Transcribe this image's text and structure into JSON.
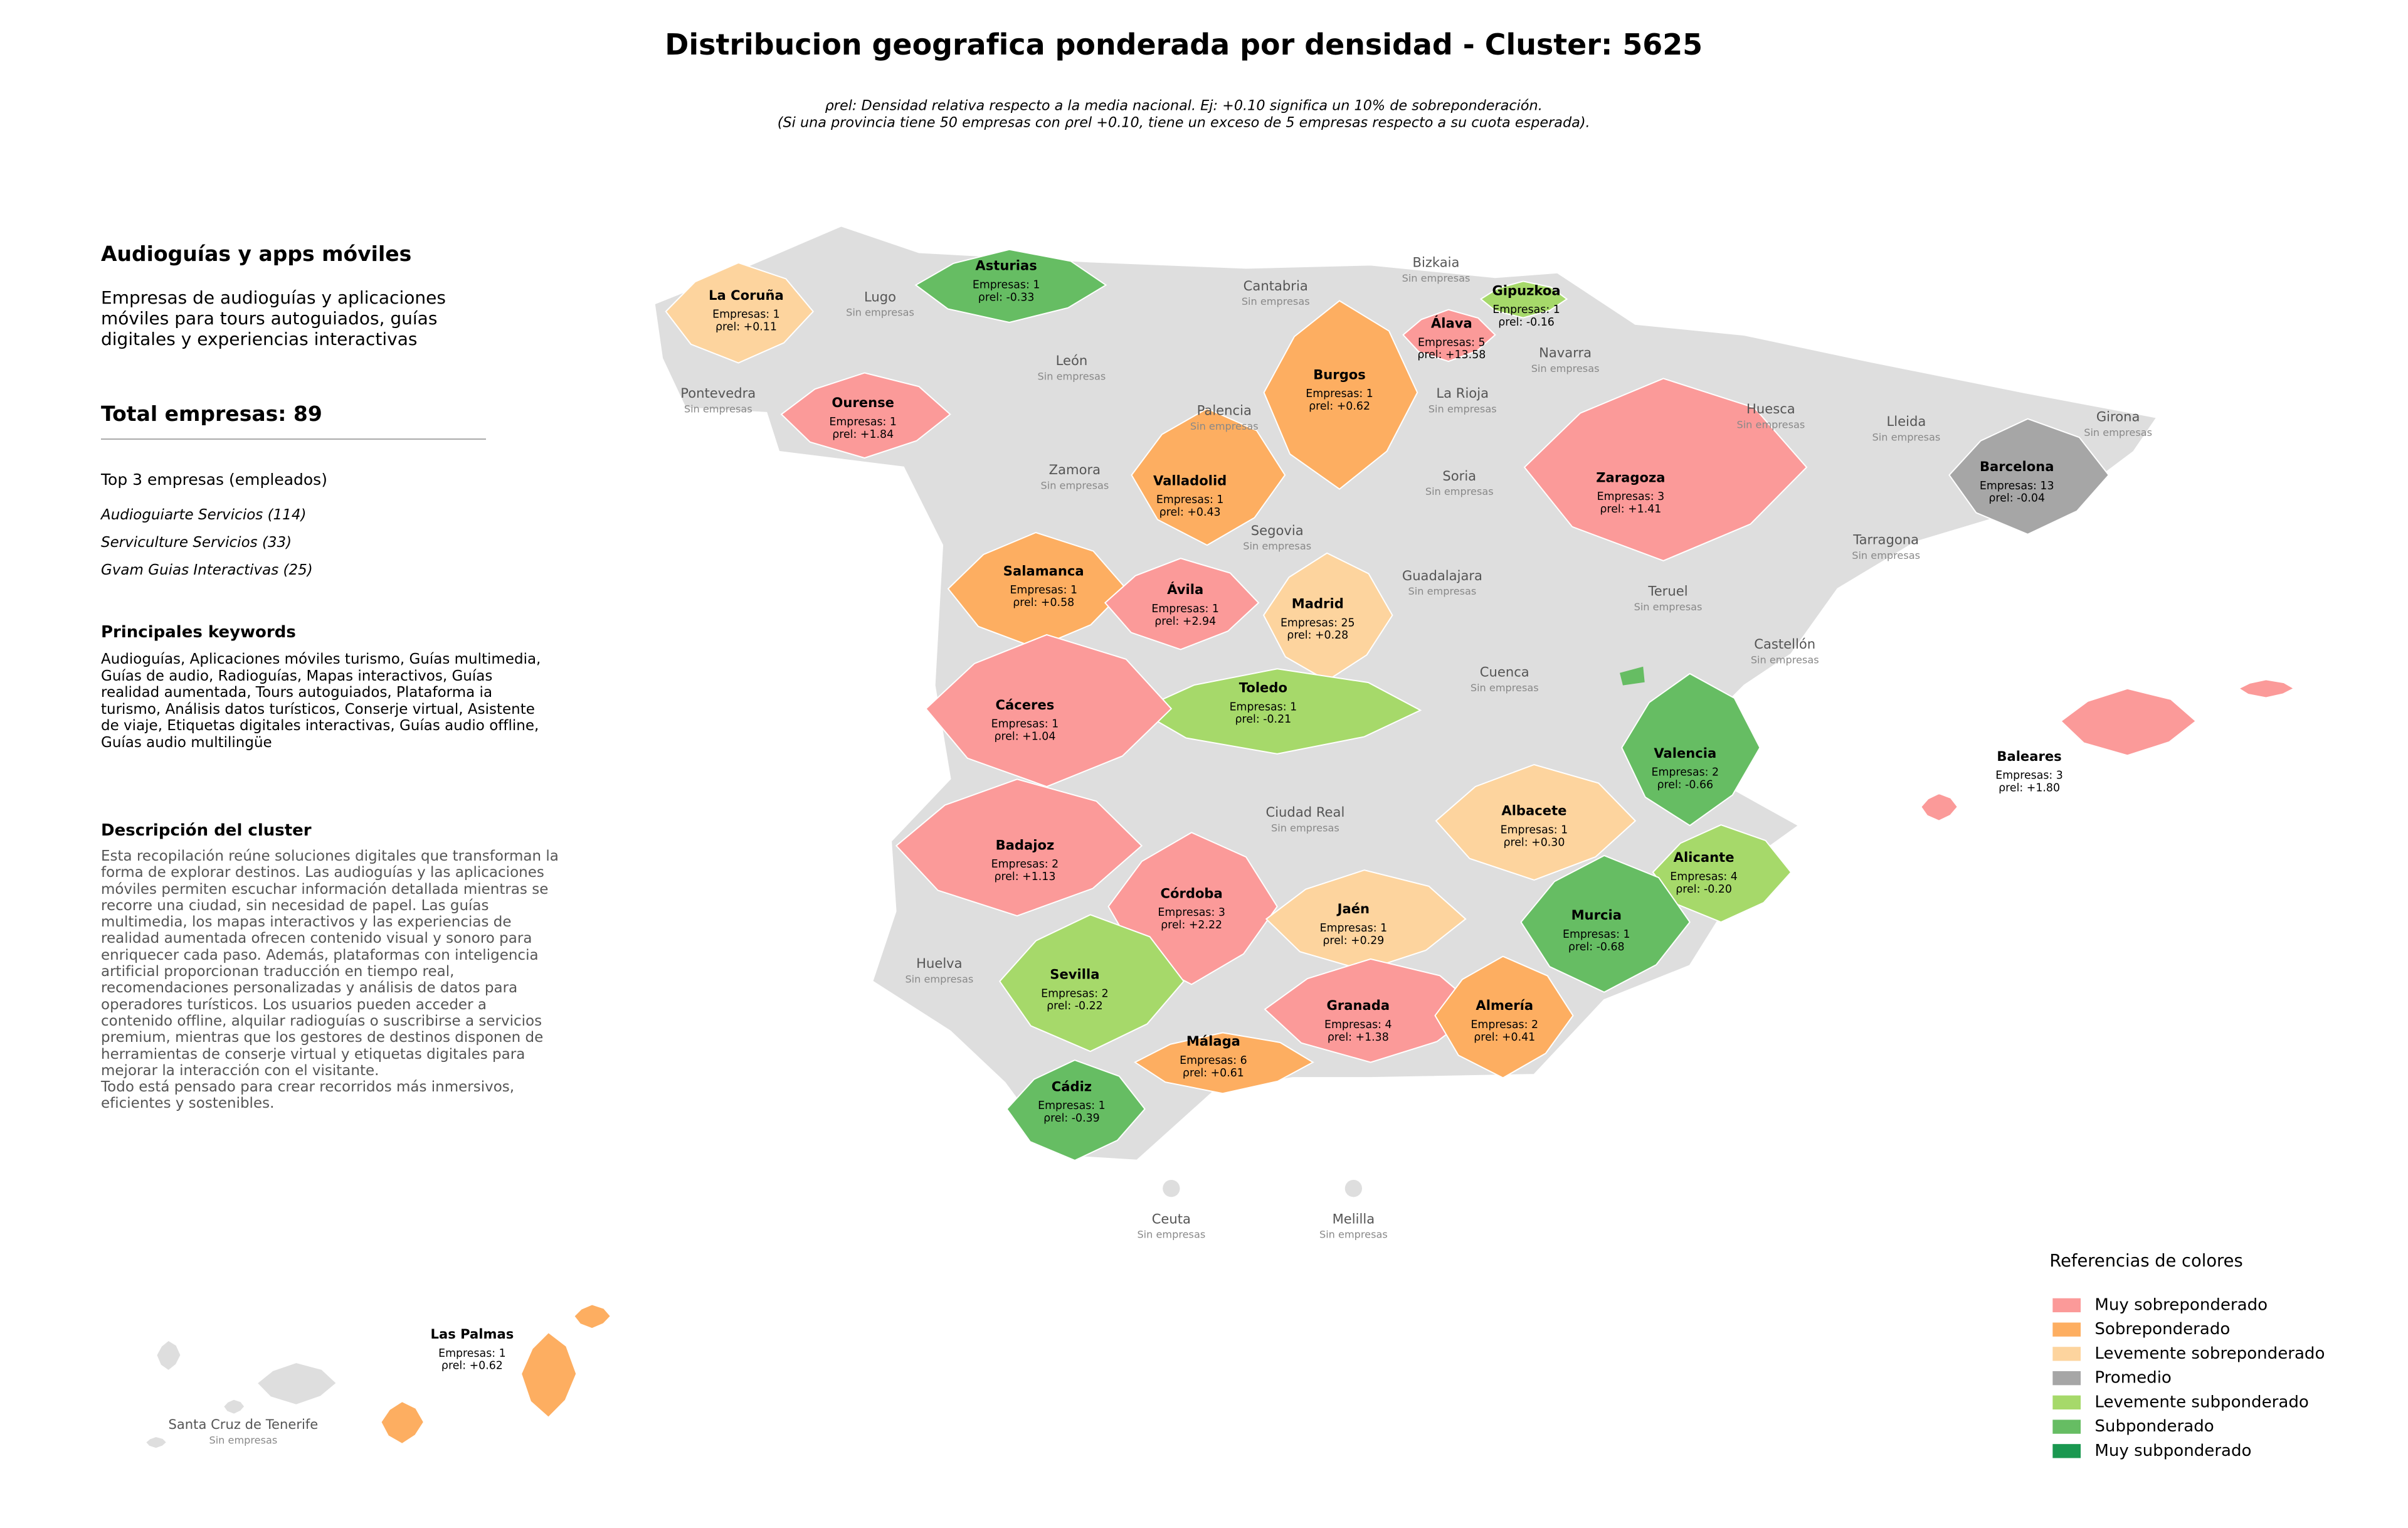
{
  "title": "Distribucion geografica ponderada por densidad - Cluster: 5625",
  "subtitle": [
    "ρrel: Densidad relativa respecto a la media nacional. Ej: +0.10 significa un 10% de sobreponderación.",
    "(Si una provincia tiene 50 empresas con ρrel +0.10, tiene un exceso de 5 empresas respecto a su cuota esperada)."
  ],
  "panel": {
    "heading": "Audioguías y apps móviles",
    "description": "Empresas de audioguías y aplicaciones móviles para tours autoguiados, guías digitales y experiencias interactivas",
    "total": "Total empresas: 89",
    "top_heading": "Top 3 empresas (empleados)",
    "top_companies": [
      "Audioguiarte Servicios (114)",
      "Serviculture Servicios (33)",
      "Gvam Guias Interactivas (25)"
    ],
    "keywords_heading": "Principales keywords",
    "keywords": "Audioguías, Aplicaciones móviles turismo, Guías multimedia, Guías de audio, Radioguías, Mapas interactivos, Guías realidad aumentada, Tours autoguiados, Plataforma ia turismo, Análisis datos turísticos, Conserje virtual, Asistente de viaje, Etiquetas digitales interactivas, Guías audio offline, Guías audio multilingüe",
    "cluster_heading": "Descripción del cluster",
    "cluster_description": "Esta recopilación reúne soluciones digitales que transforman la forma de explorar destinos. Las audioguías y las aplicaciones móviles permiten escuchar información detallada mientras se recorre una ciudad, sin necesidad de papel. Las guías multimedia, los mapas interactivos y las experiencias de realidad aumentada ofrecen contenido visual y sonoro para enriquecer cada paso. Además, plataformas con inteligencia artificial proporcionan traducción en tiempo real, recomendaciones personalizadas y análisis de datos para operadores turísticos. Los usuarios pueden acceder a contenido offline, alquilar radioguías o suscribirse a servicios premium, mientras que los gestores de destinos disponen de herramientas de conserje virtual y etiquetas digitales para mejorar la interacción con el visitante.\nTodo está pensado para crear recorridos más inmersivos, eficientes y sostenibles."
  },
  "provinces": [
    {
      "name": "La Coruña",
      "count": "Empresas: 1",
      "rho": "ρrel: +0.11",
      "color": "#fdd49e"
    },
    {
      "name": "Asturias",
      "count": "Empresas: 1",
      "rho": "ρrel: -0.33",
      "color": "#66bd63"
    },
    {
      "name": "Gipuzkoa",
      "count": "Empresas: 1",
      "rho": "ρrel: -0.16",
      "color": "#a6d96a"
    },
    {
      "name": "Álava",
      "count": "Empresas: 5",
      "rho": "ρrel: +13.58",
      "color": "#fb9a99"
    },
    {
      "name": "Burgos",
      "count": "Empresas: 1",
      "rho": "ρrel: +0.62",
      "color": "#fdae61"
    },
    {
      "name": "Ourense",
      "count": "Empresas: 1",
      "rho": "ρrel: +1.84",
      "color": "#fb9a99"
    },
    {
      "name": "Zaragoza",
      "count": "Empresas: 3",
      "rho": "ρrel: +1.41",
      "color": "#fb9a99"
    },
    {
      "name": "Barcelona",
      "count": "Empresas: 13",
      "rho": "ρrel: -0.04",
      "color": "#a6a6a6"
    },
    {
      "name": "Valladolid",
      "count": "Empresas: 1",
      "rho": "ρrel: +0.43",
      "color": "#fdae61"
    },
    {
      "name": "Salamanca",
      "count": "Empresas: 1",
      "rho": "ρrel: +0.58",
      "color": "#fdae61"
    },
    {
      "name": "Ávila",
      "count": "Empresas: 1",
      "rho": "ρrel: +2.94",
      "color": "#fb9a99"
    },
    {
      "name": "Madrid",
      "count": "Empresas: 25",
      "rho": "ρrel: +0.28",
      "color": "#fdd49e"
    },
    {
      "name": "Toledo",
      "count": "Empresas: 1",
      "rho": "ρrel: -0.21",
      "color": "#a6d96a"
    },
    {
      "name": "Cáceres",
      "count": "Empresas: 1",
      "rho": "ρrel: +1.04",
      "color": "#fb9a99"
    },
    {
      "name": "Valencia",
      "count": "Empresas: 2",
      "rho": "ρrel: -0.66",
      "color": "#66bd63"
    },
    {
      "name": "Baleares",
      "count": "Empresas: 3",
      "rho": "ρrel: +1.80",
      "color": "#fb9a99"
    },
    {
      "name": "Albacete",
      "count": "Empresas: 1",
      "rho": "ρrel: +0.30",
      "color": "#fdd49e"
    },
    {
      "name": "Badajoz",
      "count": "Empresas: 2",
      "rho": "ρrel: +1.13",
      "color": "#fb9a99"
    },
    {
      "name": "Alicante",
      "count": "Empresas: 4",
      "rho": "ρrel: -0.20",
      "color": "#a6d96a"
    },
    {
      "name": "Córdoba",
      "count": "Empresas: 3",
      "rho": "ρrel: +2.22",
      "color": "#fb9a99"
    },
    {
      "name": "Jaén",
      "count": "Empresas: 1",
      "rho": "ρrel: +0.29",
      "color": "#fdd49e"
    },
    {
      "name": "Murcia",
      "count": "Empresas: 1",
      "rho": "ρrel: -0.68",
      "color": "#66bd63"
    },
    {
      "name": "Sevilla",
      "count": "Empresas: 2",
      "rho": "ρrel: -0.22",
      "color": "#a6d96a"
    },
    {
      "name": "Granada",
      "count": "Empresas: 4",
      "rho": "ρrel: +1.38",
      "color": "#fb9a99"
    },
    {
      "name": "Almería",
      "count": "Empresas: 2",
      "rho": "ρrel: +0.41",
      "color": "#fdae61"
    },
    {
      "name": "Málaga",
      "count": "Empresas: 6",
      "rho": "ρrel: +0.61",
      "color": "#fdae61"
    },
    {
      "name": "Cádiz",
      "count": "Empresas: 1",
      "rho": "ρrel: -0.39",
      "color": "#66bd63"
    },
    {
      "name": "Las Palmas",
      "count": "Empresas: 1",
      "rho": "ρrel: +0.62",
      "color": "#fdae61"
    }
  ],
  "empty_provinces": [
    {
      "name": "Lugo",
      "note": "Sin empresas"
    },
    {
      "name": "Cantabria",
      "note": "Sin empresas"
    },
    {
      "name": "Bizkaia",
      "note": "Sin empresas"
    },
    {
      "name": "León",
      "note": "Sin empresas"
    },
    {
      "name": "Navarra",
      "note": "Sin empresas"
    },
    {
      "name": "Pontevedra",
      "note": "Sin empresas"
    },
    {
      "name": "Palencia",
      "note": "Sin empresas"
    },
    {
      "name": "La Rioja",
      "note": "Sin empresas"
    },
    {
      "name": "Huesca",
      "note": "Sin empresas"
    },
    {
      "name": "Lleida",
      "note": "Sin empresas"
    },
    {
      "name": "Girona",
      "note": "Sin empresas"
    },
    {
      "name": "Zamora",
      "note": "Sin empresas"
    },
    {
      "name": "Soria",
      "note": "Sin empresas"
    },
    {
      "name": "Segovia",
      "note": "Sin empresas"
    },
    {
      "name": "Tarragona",
      "note": "Sin empresas"
    },
    {
      "name": "Guadalajara",
      "note": "Sin empresas"
    },
    {
      "name": "Teruel",
      "note": "Sin empresas"
    },
    {
      "name": "Castellón",
      "note": "Sin empresas"
    },
    {
      "name": "Cuenca",
      "note": "Sin empresas"
    },
    {
      "name": "Ciudad Real",
      "note": "Sin empresas"
    },
    {
      "name": "Huelva",
      "note": "Sin empresas"
    },
    {
      "name": "Ceuta",
      "note": "Sin empresas"
    },
    {
      "name": "Melilla",
      "note": "Sin empresas"
    },
    {
      "name": "Santa Cruz de Tenerife",
      "note": "Sin empresas"
    }
  ],
  "legend": {
    "title": "Referencias de colores",
    "items": [
      {
        "label": "Muy sobreponderado",
        "color": "#fb9a99"
      },
      {
        "label": "Sobreponderado",
        "color": "#fdae61"
      },
      {
        "label": "Levemente sobreponderado",
        "color": "#fdd49e"
      },
      {
        "label": "Promedio",
        "color": "#a6a6a6"
      },
      {
        "label": "Levemente subponderado",
        "color": "#a6d96a"
      },
      {
        "label": "Subponderado",
        "color": "#66bd63"
      },
      {
        "label": "Muy subponderado",
        "color": "#1a9850"
      }
    ]
  }
}
